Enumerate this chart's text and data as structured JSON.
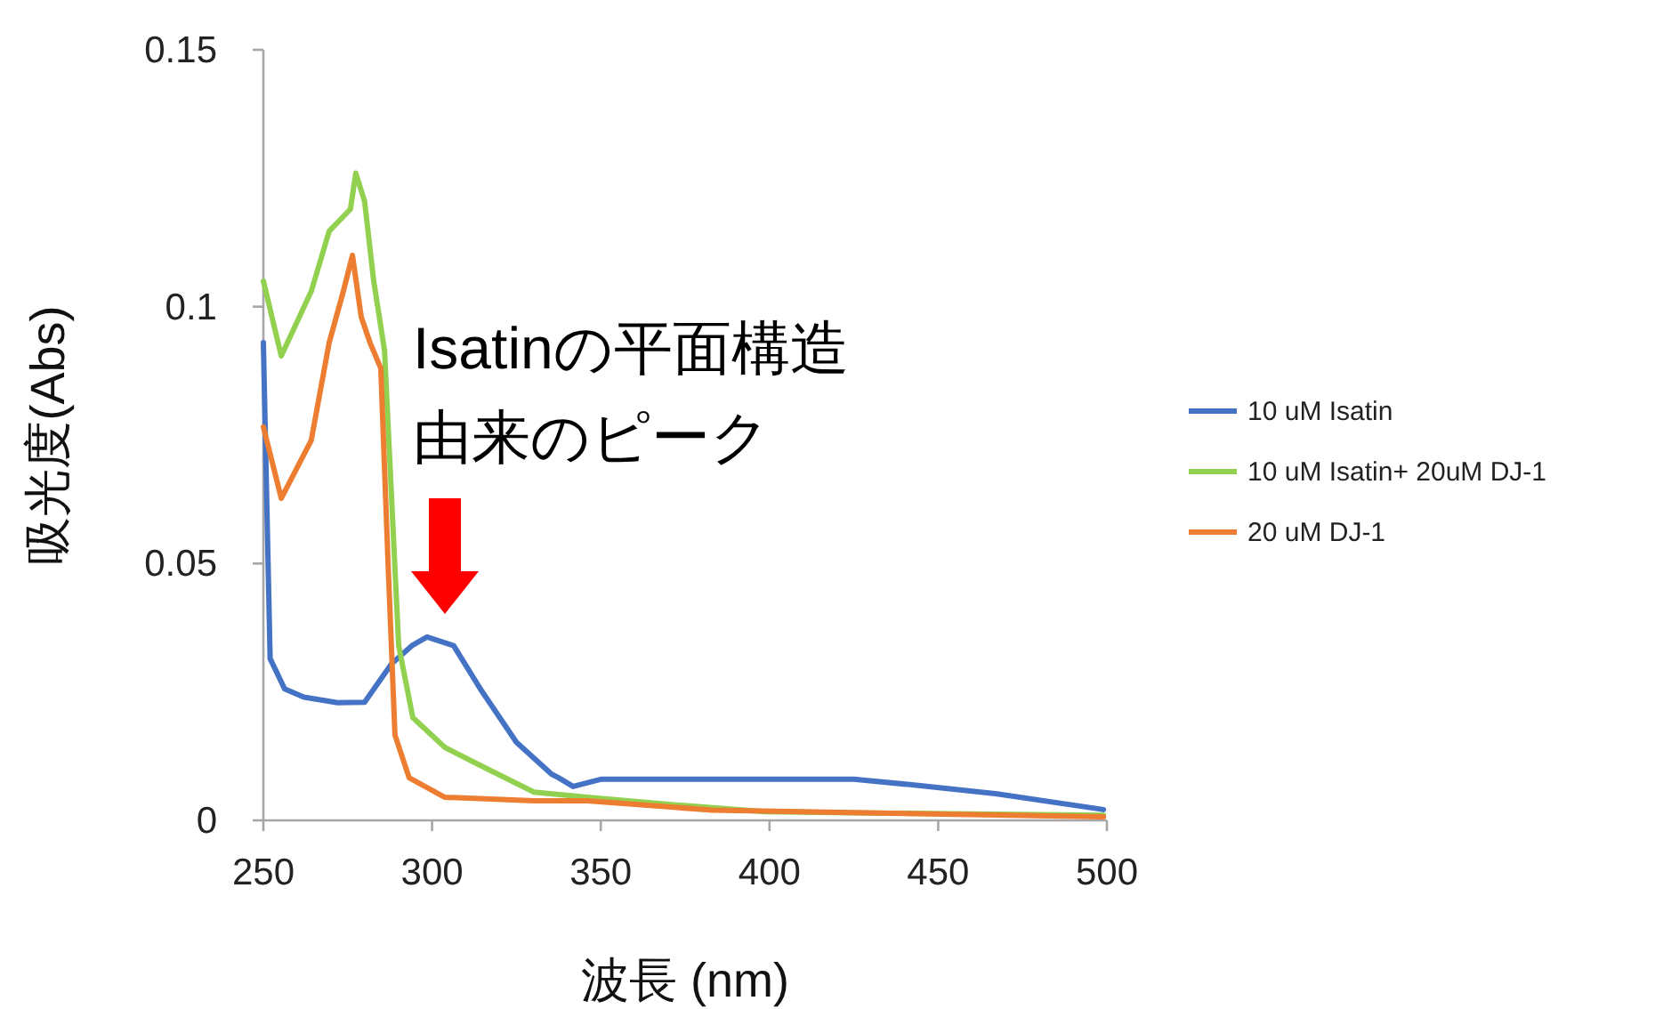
{
  "chart_data": {
    "type": "line",
    "xlabel": "波長 (nm)",
    "ylabel": "吸光度(Abs)",
    "xlim": [
      250,
      500
    ],
    "ylim": [
      0,
      0.15
    ],
    "xticks": [
      250,
      300,
      350,
      400,
      450,
      500
    ],
    "yticks": [
      0,
      0.05,
      0.1,
      0.15
    ],
    "grid": false,
    "legend": "right",
    "marker": "none",
    "line_style": "solid",
    "annotations": [
      "Isatinの平面構造由来のピーク"
    ],
    "series": [
      {
        "name": "10 uM Isatin",
        "color": "#4472c4",
        "x": [
          250,
          252,
          256.3,
          262,
          272,
          280,
          288,
          294,
          298.5,
          306.4,
          314.3,
          325,
          335.4,
          337.5,
          341.8,
          350,
          383,
          425,
          441,
          467,
          499
        ],
        "values": [
          0.093,
          0.0315,
          0.0256,
          0.024,
          0.0229,
          0.023,
          0.0305,
          0.034,
          0.0357,
          0.034,
          0.0256,
          0.0152,
          0.009,
          0.0083,
          0.0066,
          0.008,
          0.008,
          0.008,
          0.007,
          0.0052,
          0.0021
        ]
      },
      {
        "name": "10 uM Isatin+ 20uM DJ-1",
        "color": "#92d050",
        "x": [
          250,
          255.3,
          264.2,
          269.5,
          275.8,
          277.4,
          280,
          282.7,
          285.9,
          288,
          290.1,
          294.3,
          303.8,
          314.3,
          330.2,
          346,
          372.4,
          398.7,
          435.7,
          499
        ],
        "values": [
          0.105,
          0.0904,
          0.103,
          0.1147,
          0.119,
          0.126,
          0.1205,
          0.105,
          0.0915,
          0.0627,
          0.034,
          0.02,
          0.0142,
          0.0107,
          0.0055,
          0.0045,
          0.003,
          0.0017,
          0.0014,
          0.001
        ]
      },
      {
        "name": "20 uM DJ-1",
        "color": "#ed7d31",
        "x": [
          250,
          255.3,
          264.2,
          269.5,
          273.7,
          276.4,
          279,
          281.6,
          284.8,
          286.9,
          289,
          293.2,
          303.8,
          330.2,
          346,
          383,
          435.7,
          499
        ],
        "values": [
          0.0766,
          0.0627,
          0.074,
          0.093,
          0.103,
          0.11,
          0.098,
          0.093,
          0.088,
          0.051,
          0.0166,
          0.0083,
          0.0045,
          0.0038,
          0.0038,
          0.002,
          0.0014,
          0.0007
        ]
      }
    ]
  }
}
